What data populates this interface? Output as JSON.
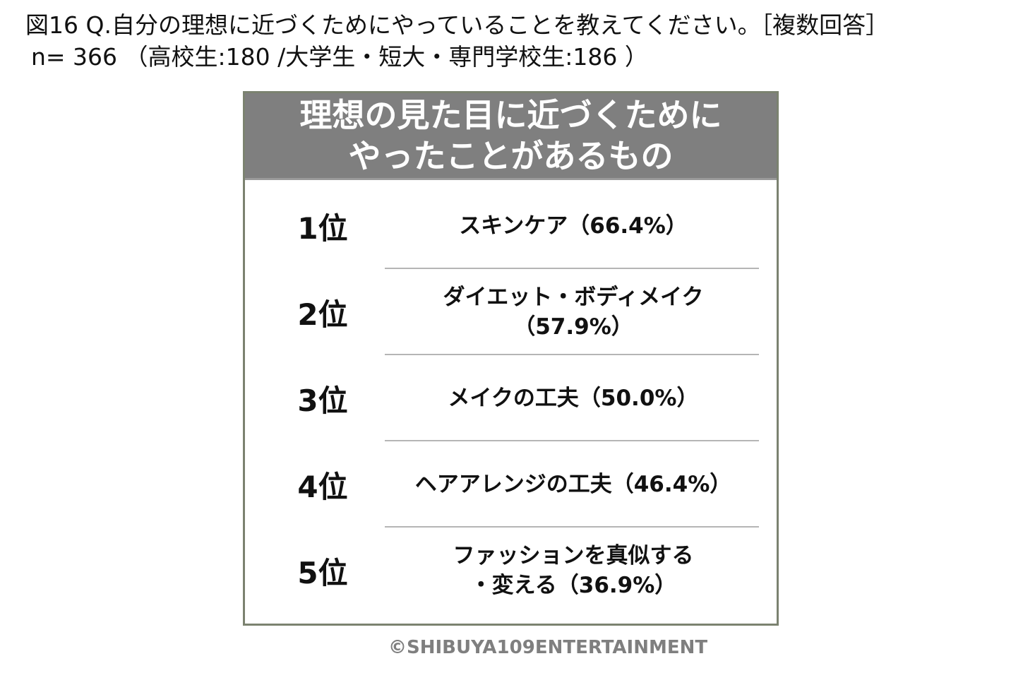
{
  "question": "図16 Q.自分の理想に近づくためにやっていることを教えてください。［複数回答］",
  "sample": "n= 366 （高校生:180 /大学生・短大・専門学校生:186 ）",
  "table": {
    "title_line1": "理想の見た目に近づくために",
    "title_line2": "やったことがあるもの",
    "rows": [
      {
        "rank": "1位",
        "label": "スキンケア（66.4%）"
      },
      {
        "rank": "2位",
        "label": "ダイエット・ボディメイク\n（57.9%）"
      },
      {
        "rank": "3位",
        "label": "メイクの工夫（50.0%）"
      },
      {
        "rank": "4位",
        "label": "ヘアアレンジの工夫（46.4%）"
      },
      {
        "rank": "5位",
        "label": "ファッションを真似する\n・変える（36.9%）"
      }
    ]
  },
  "copyright": "©SHIBUYA109ENTERTAINMENT",
  "colors": {
    "header_bg": "#7f7f7f",
    "border": "#7b8270"
  }
}
